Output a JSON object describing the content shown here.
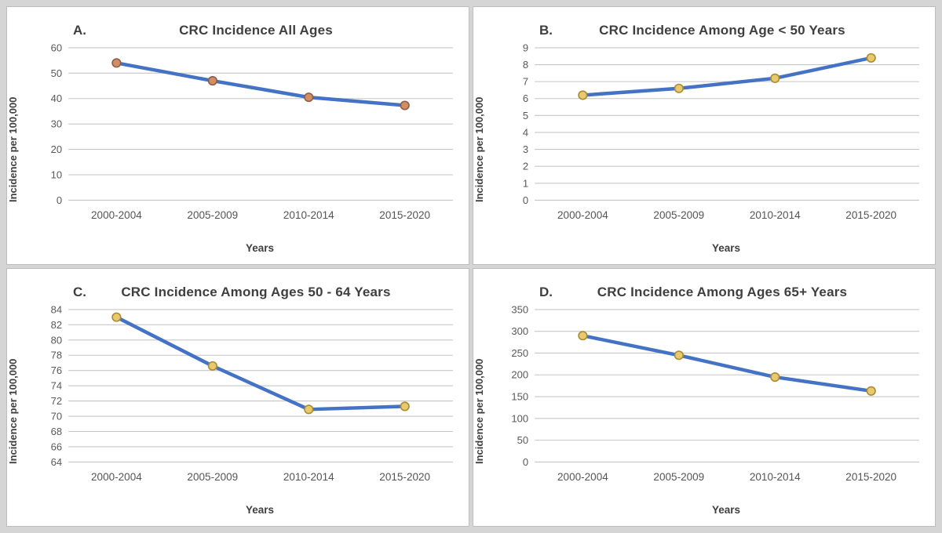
{
  "figure": {
    "background": "#d5d5d5",
    "panel_background": "#ffffff",
    "panel_border": "#bdbdbd"
  },
  "chart_data": [
    {
      "type": "line",
      "panel_label": "A.",
      "title": "CRC Incidence All Ages",
      "xlabel": "Years",
      "ylabel": "Incidence per 100,000",
      "categories": [
        "2000-2004",
        "2005-2009",
        "2010-2014",
        "2015-2020"
      ],
      "values": [
        54,
        47,
        40.5,
        37.3
      ],
      "ylim": [
        0,
        60
      ],
      "ytick_step": 10,
      "grid": true,
      "legend": "none",
      "colors": {
        "line": "#4472c4",
        "marker_fill": "#d18d64",
        "marker_stroke": "#8f5c44",
        "grid": "#c6c6c6"
      }
    },
    {
      "type": "line",
      "panel_label": "B.",
      "title": "CRC Incidence Among Age < 50 Years",
      "xlabel": "Years",
      "ylabel": "Incidence per 100,000",
      "categories": [
        "2000-2004",
        "2005-2009",
        "2010-2014",
        "2015-2020"
      ],
      "values": [
        6.2,
        6.6,
        7.2,
        8.4
      ],
      "ylim": [
        0,
        9
      ],
      "ytick_step": 1,
      "grid": true,
      "legend": "none",
      "colors": {
        "line": "#4472c4",
        "marker_fill": "#e9c96d",
        "marker_stroke": "#a98b33",
        "grid": "#c6c6c6"
      }
    },
    {
      "type": "line",
      "panel_label": "C.",
      "title": "CRC Incidence Among Ages 50 - 64 Years",
      "xlabel": "Years",
      "ylabel": "Incidence per 100,000",
      "categories": [
        "2000-2004",
        "2005-2009",
        "2010-2014",
        "2015-2020"
      ],
      "values": [
        83,
        76.6,
        70.9,
        71.3
      ],
      "ylim": [
        64,
        84
      ],
      "ytick_step": 2,
      "grid": true,
      "legend": "none",
      "colors": {
        "line": "#4472c4",
        "marker_fill": "#e9c96d",
        "marker_stroke": "#a98b33",
        "grid": "#c6c6c6"
      }
    },
    {
      "type": "line",
      "panel_label": "D.",
      "title": "CRC Incidence Among Ages 65+ Years",
      "xlabel": "Years",
      "ylabel": "Incidence per 100,000",
      "categories": [
        "2000-2004",
        "2005-2009",
        "2010-2014",
        "2015-2020"
      ],
      "values": [
        290,
        245,
        195,
        163
      ],
      "ylim": [
        0,
        350
      ],
      "ytick_step": 50,
      "grid": true,
      "legend": "none",
      "colors": {
        "line": "#4472c4",
        "marker_fill": "#e9c96d",
        "marker_stroke": "#a98b33",
        "grid": "#c6c6c6"
      }
    }
  ]
}
